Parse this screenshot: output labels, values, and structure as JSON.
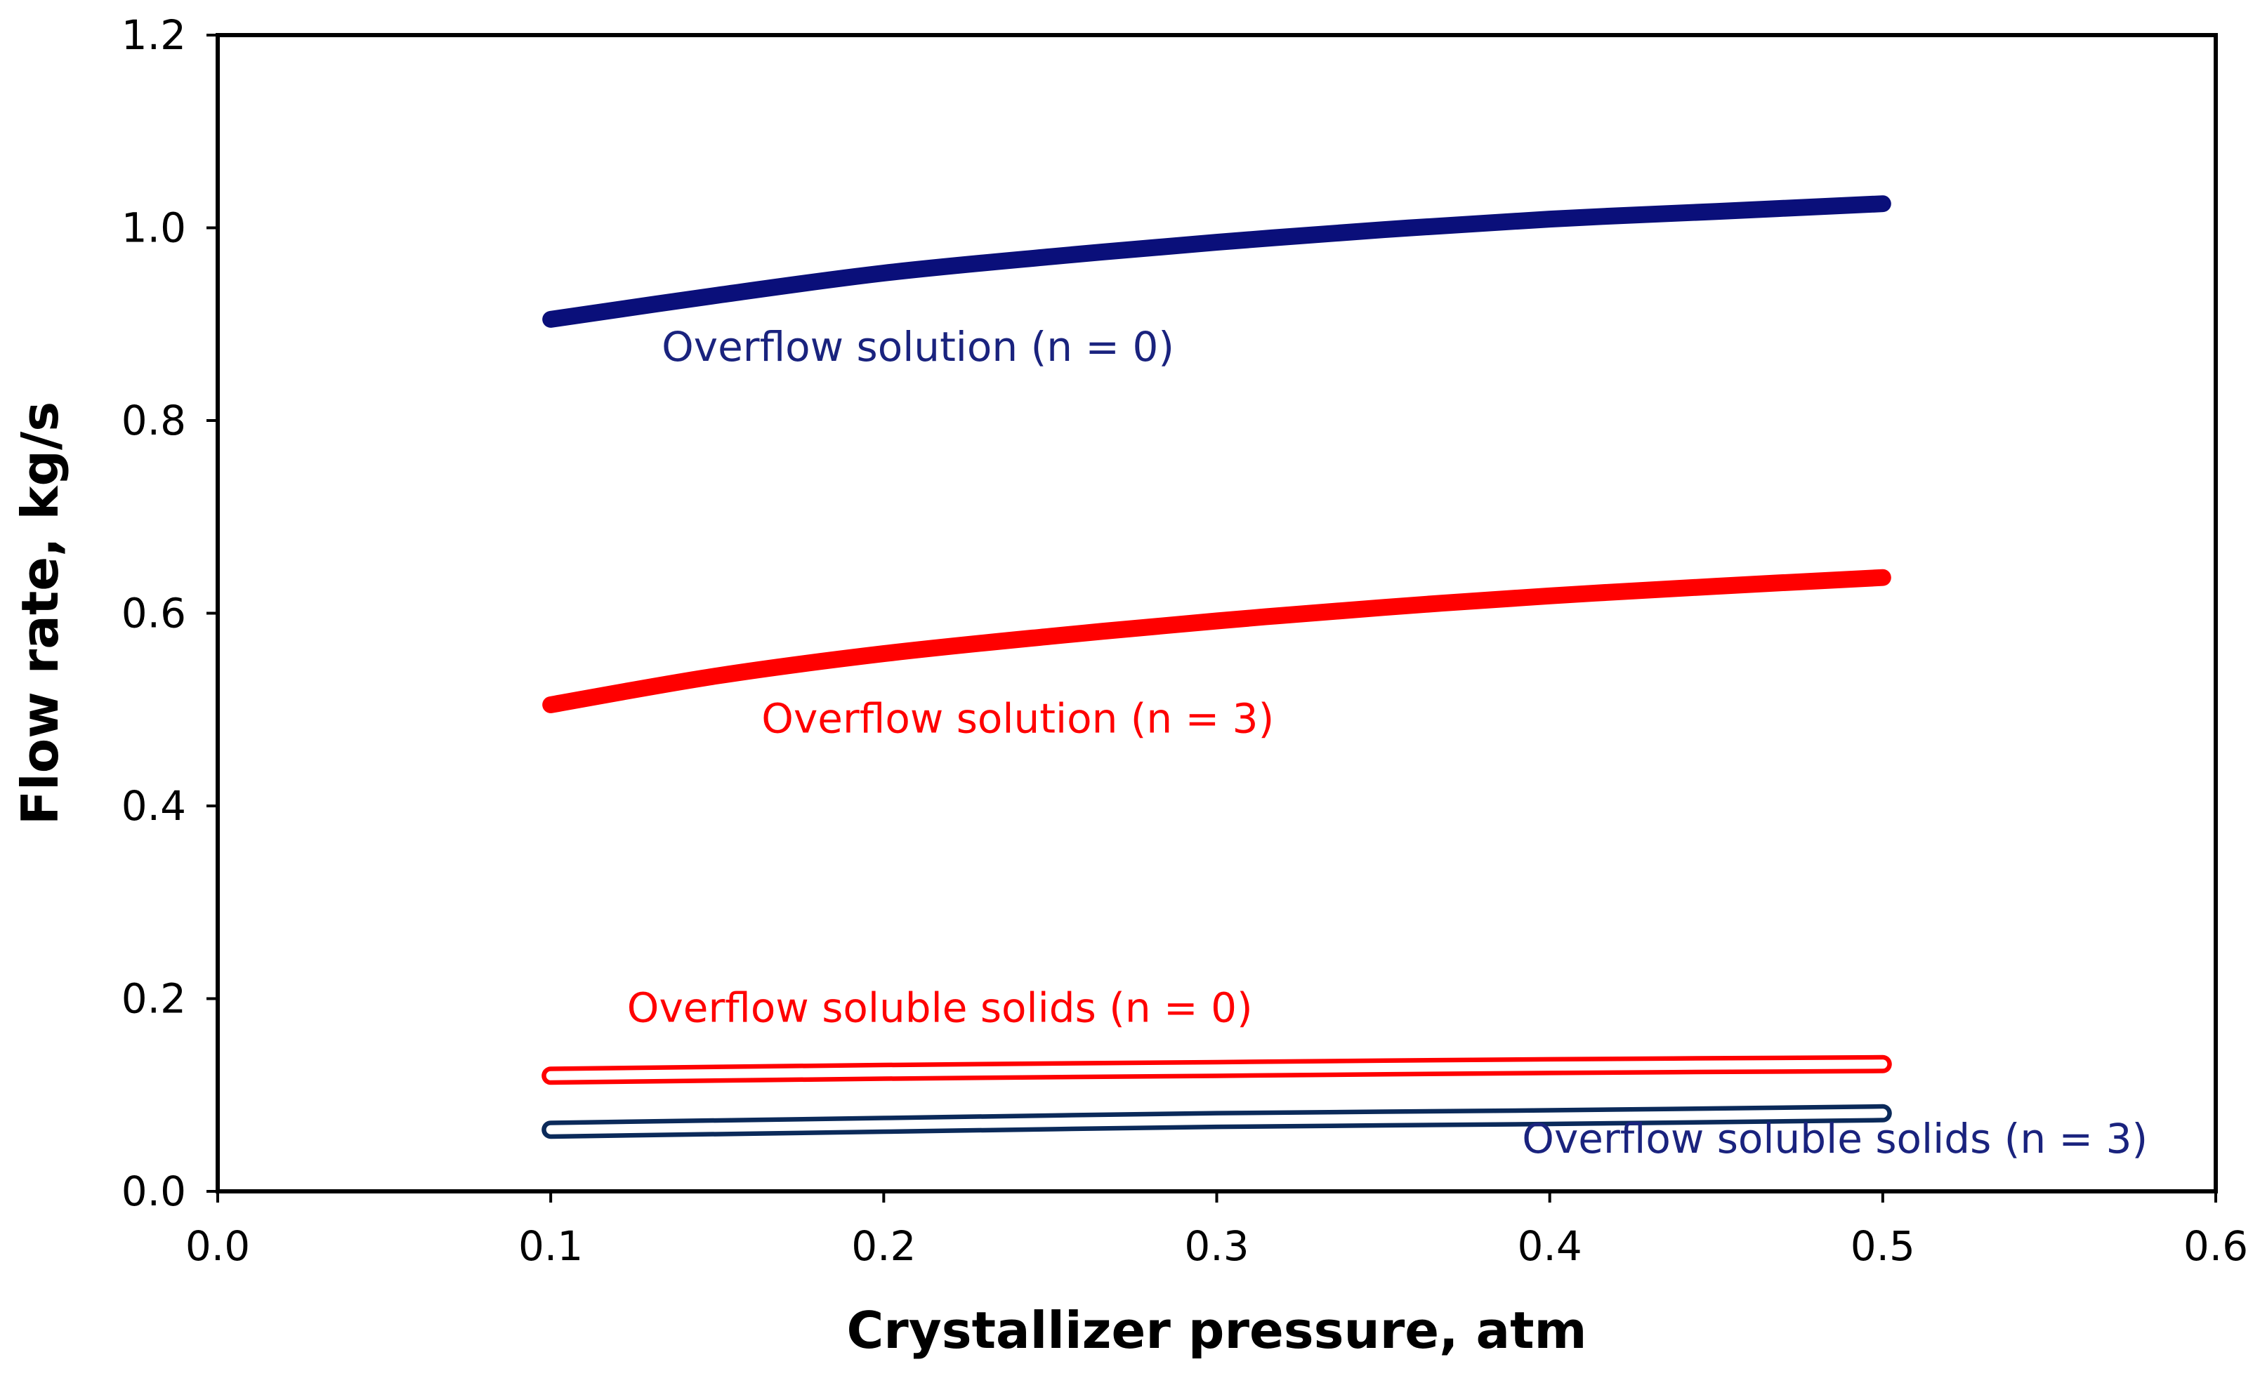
{
  "chart_data": {
    "type": "line",
    "title": "",
    "xlabel": "Crystallizer pressure, atm",
    "ylabel": "Flow rate, kg/s",
    "xlim": [
      0.0,
      0.6
    ],
    "ylim": [
      0.0,
      1.2
    ],
    "x_ticks": [
      0.0,
      0.1,
      0.2,
      0.3,
      0.4,
      0.5,
      0.6
    ],
    "y_ticks": [
      0.0,
      0.2,
      0.4,
      0.6,
      0.8,
      1.0,
      1.2
    ],
    "x_tick_labels": [
      "0.0",
      "0.1",
      "0.2",
      "0.3",
      "0.4",
      "0.5",
      "0.6"
    ],
    "y_tick_labels": [
      "0.0",
      "0.2",
      "0.4",
      "0.6",
      "0.8",
      "1.0",
      "1.2"
    ],
    "grid": false,
    "legend": "none",
    "series": [
      {
        "name": "Overflow solution (n = 0)",
        "color": "#0a0f7a",
        "style": "solid-thick",
        "x": [
          0.1,
          0.15,
          0.2,
          0.25,
          0.3,
          0.35,
          0.4,
          0.45,
          0.5
        ],
        "values": [
          0.905,
          0.93,
          0.953,
          0.97,
          0.985,
          0.998,
          1.009,
          1.017,
          1.025
        ]
      },
      {
        "name": "Overflow solution (n = 3)",
        "color": "#ff0000",
        "style": "solid-thick",
        "x": [
          0.1,
          0.15,
          0.2,
          0.25,
          0.3,
          0.35,
          0.4,
          0.45,
          0.5
        ],
        "values": [
          0.505,
          0.535,
          0.558,
          0.576,
          0.592,
          0.606,
          0.618,
          0.628,
          0.637
        ]
      },
      {
        "name": "Overflow soluble solids (n = 0)",
        "color": "#ff0000",
        "style": "hollow",
        "x": [
          0.1,
          0.2,
          0.3,
          0.4,
          0.5
        ],
        "values": [
          0.12,
          0.124,
          0.127,
          0.13,
          0.132
        ]
      },
      {
        "name": "Overflow soluble solids (n = 3)",
        "color": "#0b2a5a",
        "style": "hollow",
        "x": [
          0.1,
          0.2,
          0.3,
          0.4,
          0.5
        ],
        "values": [
          0.064,
          0.069,
          0.074,
          0.077,
          0.081
        ]
      }
    ],
    "annotations": [
      {
        "text": "Overflow solution (n = 0)",
        "color": "#1a237e",
        "x": 0.1333,
        "y": 0.862
      },
      {
        "text": "Overflow solution (n = 3)",
        "color": "#ff0000",
        "x": 0.1633,
        "y": 0.476
      },
      {
        "text": "Overflow soluble solids (n = 0)",
        "color": "#ff0000",
        "x": 0.1229,
        "y": 0.176
      },
      {
        "text": "Overflow soluble solids (n = 3)",
        "color": "#1a237e",
        "x": 0.3917,
        "y": 0.04
      }
    ]
  }
}
